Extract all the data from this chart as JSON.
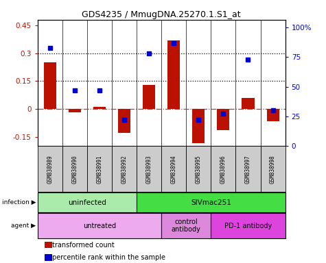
{
  "title": "GDS4235 / MmugDNA.25270.1.S1_at",
  "samples": [
    "GSM838989",
    "GSM838990",
    "GSM838991",
    "GSM838992",
    "GSM838993",
    "GSM838994",
    "GSM838995",
    "GSM838996",
    "GSM838997",
    "GSM838998"
  ],
  "transformed_count": [
    0.25,
    -0.02,
    0.01,
    -0.13,
    0.13,
    0.37,
    -0.185,
    -0.115,
    0.06,
    -0.065
  ],
  "percentile_rank": [
    0.83,
    0.47,
    0.47,
    0.22,
    0.78,
    0.87,
    0.22,
    0.27,
    0.73,
    0.3
  ],
  "ylim_left": [
    -0.2,
    0.48
  ],
  "ylim_right": [
    0.0,
    1.066
  ],
  "yticks_left": [
    -0.15,
    0.0,
    0.15,
    0.3,
    0.45
  ],
  "yticks_left_labels": [
    "-0.15",
    "0",
    "0.15",
    "0.3",
    "0.45"
  ],
  "yticks_right": [
    0.0,
    0.25,
    0.5,
    0.75,
    1.0
  ],
  "yticks_right_labels": [
    "0",
    "25",
    "50",
    "75",
    "100%"
  ],
  "hlines": [
    0.15,
    0.3
  ],
  "bar_color": "#bb1100",
  "dot_color": "#0000cc",
  "zero_line_color": "#cc3311",
  "infection_labels": [
    {
      "text": "uninfected",
      "start": 0,
      "end": 3,
      "color": "#aaeaaa"
    },
    {
      "text": "SIVmac251",
      "start": 4,
      "end": 9,
      "color": "#44dd44"
    }
  ],
  "agent_labels": [
    {
      "text": "untreated",
      "start": 0,
      "end": 4,
      "color": "#eeaaee"
    },
    {
      "text": "control\nantibody",
      "start": 5,
      "end": 6,
      "color": "#dd88dd"
    },
    {
      "text": "PD-1 antibody",
      "start": 7,
      "end": 9,
      "color": "#dd44dd"
    }
  ],
  "legend_items": [
    {
      "label": "transformed count",
      "color": "#bb1100"
    },
    {
      "label": "percentile rank within the sample",
      "color": "#0000cc"
    }
  ],
  "sample_box_color": "#cccccc",
  "fig_width": 4.75,
  "fig_height": 3.84,
  "dpi": 100
}
